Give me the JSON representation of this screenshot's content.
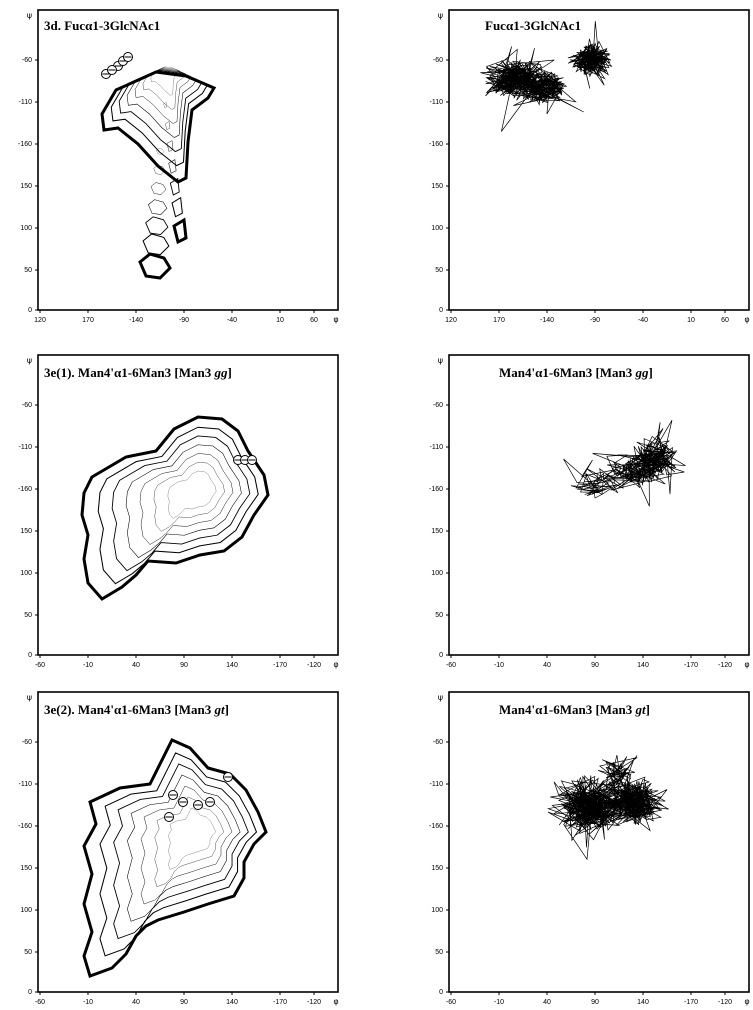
{
  "figure_name": "ramachandran-contour-and-trajectory-panels",
  "colors": {
    "ink": "#000000",
    "paper": "#ffffff"
  },
  "chart_data": [
    {
      "id": "3d-contour",
      "type": "contour",
      "title_main": "3d. Fucα1-3GlcNAc1",
      "title_italic": "",
      "title_tail": "",
      "x_ticks": [
        "120",
        "170",
        "-140",
        "-90",
        "-40",
        "10",
        "60"
      ],
      "y_ticks": [
        "-60",
        "-110",
        "-160",
        "150",
        "100",
        "50",
        "0"
      ],
      "x_symbol": "φ",
      "y_symbol": "ψ",
      "x_domain": [
        120,
        420
      ],
      "y_domain": [
        0,
        300
      ],
      "contour_centers": [
        [
          250,
          245
        ],
        [
          242,
          249
        ],
        [
          244,
          199
        ],
        [
          210,
          65
        ]
      ],
      "minima_markers": [
        [
          200,
          244
        ],
        [
          205,
          249
        ],
        [
          210,
          253
        ],
        [
          188,
          236
        ],
        [
          194,
          240
        ]
      ]
    },
    {
      "id": "3d-trajectory",
      "type": "trajectory",
      "title_main": "Fucα1-3GlcNAc1",
      "title_italic": "",
      "title_tail": "",
      "x_ticks": [
        "120",
        "170",
        "-140",
        "-90",
        "-40",
        "10",
        "60"
      ],
      "y_ticks": [
        "-60",
        "-110",
        "-160",
        "150",
        "100",
        "50",
        "0"
      ],
      "x_symbol": "φ",
      "y_symbol": "ψ",
      "x_domain": [
        120,
        420
      ],
      "y_domain": [
        0,
        300
      ],
      "clusters": [
        [
          185,
          230,
          14,
          9,
          260
        ],
        [
          215,
          222,
          12,
          8,
          180
        ],
        [
          262,
          250,
          9,
          8,
          200
        ]
      ]
    },
    {
      "id": "3e1-contour",
      "type": "contour",
      "title_main": "3e(1). Man4'α1-6Man3 [Man3 ",
      "title_italic": "gg",
      "title_tail": "]",
      "x_ticks": [
        "-60",
        "-10",
        "40",
        "90",
        "140",
        "-170",
        "-120"
      ],
      "y_ticks": [
        "-60",
        "-110",
        "-160",
        "150",
        "100",
        "50",
        "0"
      ],
      "x_symbol": "φ",
      "y_symbol": "ψ",
      "x_domain": [
        -60,
        240
      ],
      "y_domain": [
        0,
        300
      ],
      "contour_centers": [
        [
          100,
          165
        ],
        [
          60,
          140
        ],
        [
          140,
          225
        ]
      ],
      "minima_markers": [
        [
          140,
          195
        ],
        [
          147,
          195
        ],
        [
          154,
          195
        ]
      ]
    },
    {
      "id": "3e1-trajectory",
      "type": "trajectory",
      "title_main": "Man4'α1-6Man3 [Man3 ",
      "title_italic": "gg",
      "title_tail": "]",
      "x_ticks": [
        "-60",
        "-10",
        "40",
        "90",
        "140",
        "-170",
        "-120"
      ],
      "y_ticks": [
        "-60",
        "-110",
        "-160",
        "150",
        "100",
        "50",
        "0"
      ],
      "x_symbol": "φ",
      "y_symbol": "ψ",
      "x_domain": [
        -60,
        240
      ],
      "y_domain": [
        0,
        300
      ],
      "clusters": [
        [
          145,
          195,
          12,
          10,
          170
        ],
        [
          120,
          185,
          12,
          8,
          90
        ],
        [
          90,
          170,
          14,
          7,
          50
        ]
      ]
    },
    {
      "id": "3e2-contour",
      "type": "contour",
      "title_main": "3e(2). Man4'α1-6Man3 [Man3 ",
      "title_italic": "gt",
      "title_tail": "]",
      "x_ticks": [
        "-60",
        "-10",
        "40",
        "90",
        "140",
        "-170",
        "-120"
      ],
      "y_ticks": [
        "-60",
        "-110",
        "-160",
        "150",
        "100",
        "50",
        "0"
      ],
      "x_symbol": "φ",
      "y_symbol": "ψ",
      "x_domain": [
        -60,
        240
      ],
      "y_domain": [
        0,
        300
      ],
      "contour_centers": [
        [
          100,
          160
        ],
        [
          60,
          140
        ],
        [
          145,
          215
        ]
      ],
      "minima_markers": [
        [
          130,
          215
        ],
        [
          75,
          197
        ],
        [
          85,
          190
        ],
        [
          100,
          187
        ],
        [
          112,
          190
        ],
        [
          71,
          175
        ]
      ]
    },
    {
      "id": "3e2-trajectory",
      "type": "trajectory",
      "title_main": "Man4'α1-6Man3 [Man3 ",
      "title_italic": "gt",
      "title_tail": "]",
      "x_ticks": [
        "-60",
        "-10",
        "40",
        "90",
        "140",
        "-170",
        "-120"
      ],
      "y_ticks": [
        "-60",
        "-110",
        "-160",
        "150",
        "100",
        "50",
        "0"
      ],
      "x_symbol": "φ",
      "y_symbol": "ψ",
      "x_domain": [
        -60,
        240
      ],
      "y_domain": [
        0,
        300
      ],
      "clusters": [
        [
          80,
          185,
          16,
          13,
          330
        ],
        [
          125,
          190,
          15,
          11,
          300
        ],
        [
          110,
          215,
          10,
          10,
          60
        ]
      ]
    }
  ]
}
